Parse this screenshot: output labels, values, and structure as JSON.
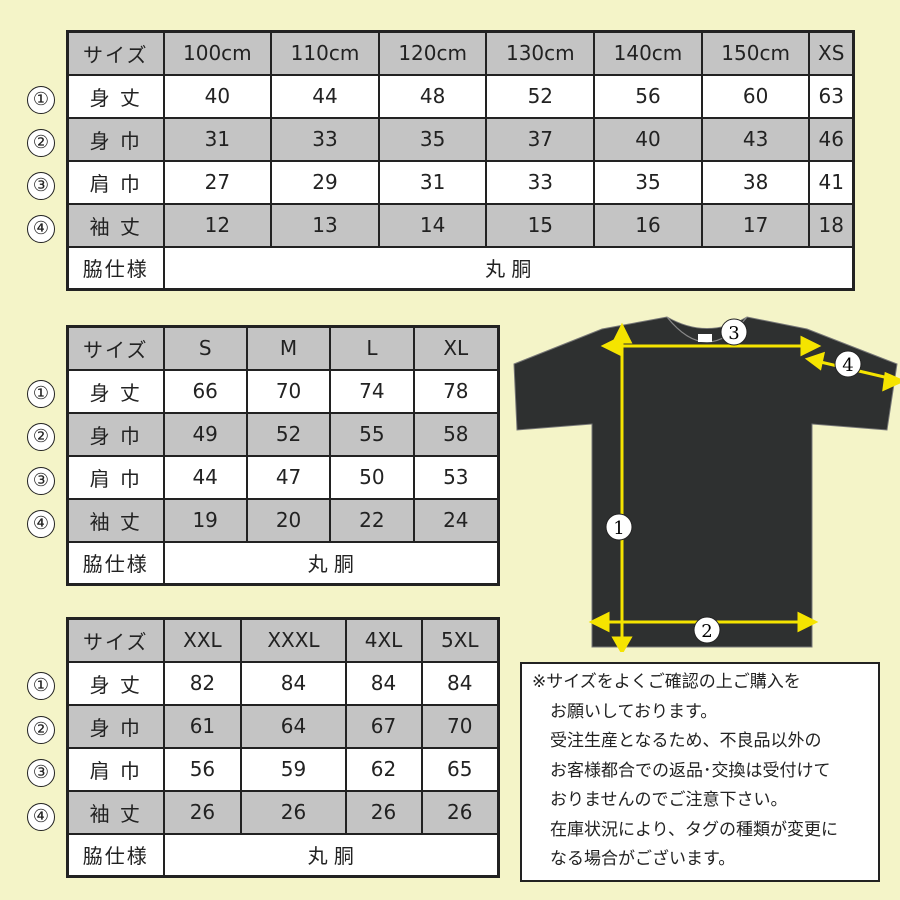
{
  "row_markers": [
    "①",
    "②",
    "③",
    "④"
  ],
  "tables": [
    {
      "header_label": "サイズ",
      "sizes": [
        "100cm",
        "110cm",
        "120cm",
        "130cm",
        "140cm",
        "150cm",
        "XS"
      ],
      "rows": [
        {
          "label": "身 丈",
          "values": [
            "40",
            "44",
            "48",
            "52",
            "56",
            "60",
            "63"
          ]
        },
        {
          "label": "身 巾",
          "values": [
            "31",
            "33",
            "35",
            "37",
            "40",
            "43",
            "46"
          ]
        },
        {
          "label": "肩 巾",
          "values": [
            "27",
            "29",
            "31",
            "33",
            "35",
            "38",
            "41"
          ]
        },
        {
          "label": "袖 丈",
          "values": [
            "12",
            "13",
            "14",
            "15",
            "16",
            "17",
            "18"
          ]
        }
      ],
      "side_label": "脇仕様",
      "side_value": "丸 胴"
    },
    {
      "header_label": "サイズ",
      "sizes": [
        "S",
        "M",
        "L",
        "XL"
      ],
      "rows": [
        {
          "label": "身 丈",
          "values": [
            "66",
            "70",
            "74",
            "78"
          ]
        },
        {
          "label": "身 巾",
          "values": [
            "49",
            "52",
            "55",
            "58"
          ]
        },
        {
          "label": "肩 巾",
          "values": [
            "44",
            "47",
            "50",
            "53"
          ]
        },
        {
          "label": "袖 丈",
          "values": [
            "19",
            "20",
            "22",
            "24"
          ]
        }
      ],
      "side_label": "脇仕様",
      "side_value": "丸 胴"
    },
    {
      "header_label": "サイズ",
      "sizes": [
        "XXL",
        "XXXL",
        "4XL",
        "5XL"
      ],
      "rows": [
        {
          "label": "身 丈",
          "values": [
            "82",
            "84",
            "84",
            "84"
          ]
        },
        {
          "label": "身 巾",
          "values": [
            "61",
            "64",
            "67",
            "70"
          ]
        },
        {
          "label": "肩 巾",
          "values": [
            "56",
            "59",
            "62",
            "65"
          ]
        },
        {
          "label": "袖 丈",
          "values": [
            "26",
            "26",
            "26",
            "26"
          ]
        }
      ],
      "side_label": "脇仕様",
      "side_value": "丸 胴"
    }
  ],
  "diagram": {
    "markers": [
      "1",
      "2",
      "3",
      "4"
    ],
    "shirt_color": "#2e3030",
    "arrow_color": "#f5e400"
  },
  "notice": {
    "lines": [
      "※サイズをよくご確認の上ご購入を",
      "お願いしております。",
      "受注生産となるため、不良品以外の",
      "お客様都合での返品･交換は受付けて",
      "おりませんのでご注意下さい。",
      "在庫状況により、タグの種類が変更に",
      "なる場合がございます。"
    ]
  }
}
